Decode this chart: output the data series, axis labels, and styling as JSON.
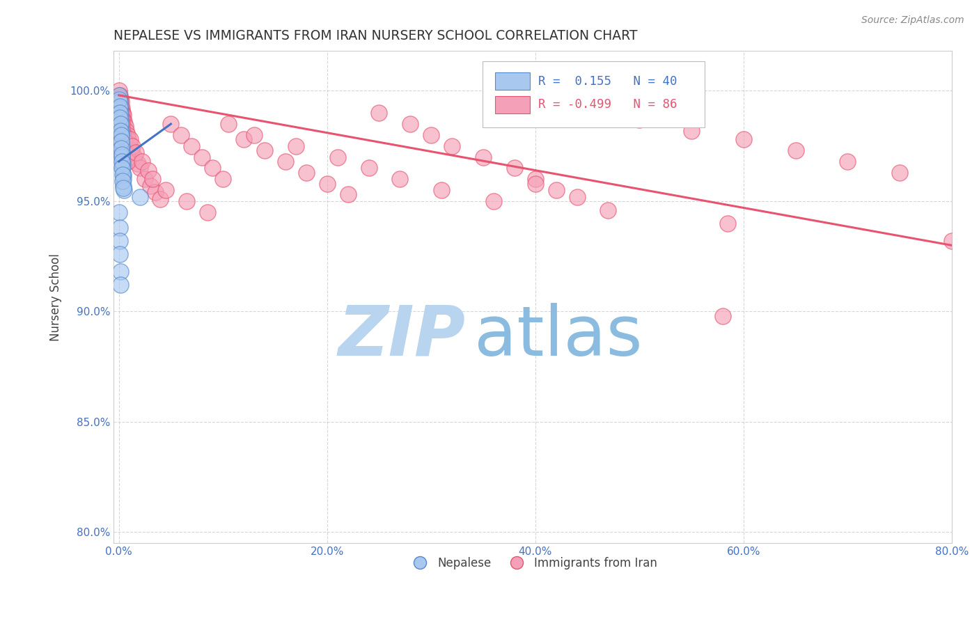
{
  "title": "NEPALESE VS IMMIGRANTS FROM IRAN NURSERY SCHOOL CORRELATION CHART",
  "source": "Source: ZipAtlas.com",
  "xlabel_ticks": [
    0.0,
    20.0,
    40.0,
    60.0,
    80.0
  ],
  "ylabel_ticks": [
    80.0,
    85.0,
    90.0,
    95.0,
    100.0
  ],
  "xmin": -0.5,
  "xmax": 80.0,
  "ymin": 79.5,
  "ymax": 101.8,
  "ylabel": "Nursery School",
  "legend_labels": [
    "Nepalese",
    "Immigrants from Iran"
  ],
  "blue_R": 0.155,
  "blue_N": 40,
  "pink_R": -0.499,
  "pink_N": 86,
  "blue_color": "#A8C8F0",
  "pink_color": "#F4A0B8",
  "blue_edge_color": "#5588CC",
  "pink_edge_color": "#E8536F",
  "blue_line_color": "#4472C4",
  "pink_line_color": "#E8536F",
  "watermark_zip_color": "#B8D4EE",
  "watermark_atlas_color": "#8BBCE0",
  "grid_color": "#CCCCCC",
  "title_color": "#333333",
  "axis_tick_color": "#4472C4",
  "blue_scatter_x": [
    0.05,
    0.08,
    0.1,
    0.12,
    0.15,
    0.18,
    0.2,
    0.22,
    0.25,
    0.28,
    0.3,
    0.32,
    0.35,
    0.38,
    0.4,
    0.42,
    0.45,
    0.48,
    0.05,
    0.08,
    0.1,
    0.12,
    0.15,
    0.18,
    0.2,
    0.22,
    0.25,
    0.28,
    0.3,
    0.32,
    0.35,
    0.38,
    0.4,
    0.05,
    0.07,
    0.09,
    0.11,
    0.14,
    0.16,
    2.0
  ],
  "blue_scatter_y": [
    99.8,
    99.5,
    99.2,
    99.0,
    98.7,
    98.5,
    98.2,
    98.0,
    97.7,
    97.5,
    97.2,
    97.0,
    96.7,
    96.5,
    96.2,
    96.0,
    95.7,
    95.5,
    99.6,
    99.3,
    99.0,
    98.8,
    98.5,
    98.2,
    98.0,
    97.7,
    97.4,
    97.1,
    96.8,
    96.5,
    96.2,
    95.9,
    95.6,
    94.5,
    93.8,
    93.2,
    92.6,
    91.8,
    91.2,
    95.2
  ],
  "pink_scatter_x": [
    0.05,
    0.1,
    0.15,
    0.2,
    0.25,
    0.3,
    0.35,
    0.4,
    0.45,
    0.5,
    0.6,
    0.7,
    0.8,
    0.9,
    1.0,
    1.2,
    1.5,
    1.8,
    2.0,
    2.5,
    3.0,
    3.5,
    4.0,
    5.0,
    6.0,
    7.0,
    8.0,
    9.0,
    10.0,
    12.0,
    14.0,
    16.0,
    18.0,
    20.0,
    22.0,
    25.0,
    28.0,
    30.0,
    32.0,
    35.0,
    38.0,
    40.0,
    42.0,
    45.0,
    48.0,
    50.0,
    55.0,
    60.0,
    65.0,
    70.0,
    75.0,
    80.0,
    0.08,
    0.12,
    0.18,
    0.22,
    0.28,
    0.32,
    0.38,
    0.42,
    0.55,
    0.65,
    0.75,
    0.85,
    1.1,
    1.3,
    1.6,
    2.2,
    2.8,
    3.2,
    4.5,
    6.5,
    8.5,
    10.5,
    13.0,
    17.0,
    21.0,
    24.0,
    27.0,
    31.0,
    36.0,
    40.0,
    44.0,
    47.0,
    58.0,
    58.5
  ],
  "pink_scatter_y": [
    100.0,
    99.8,
    99.6,
    99.5,
    99.3,
    99.2,
    99.0,
    98.9,
    98.7,
    98.6,
    98.4,
    98.2,
    98.0,
    97.8,
    97.6,
    97.3,
    97.0,
    96.7,
    96.5,
    96.0,
    95.7,
    95.4,
    95.1,
    98.5,
    98.0,
    97.5,
    97.0,
    96.5,
    96.0,
    97.8,
    97.3,
    96.8,
    96.3,
    95.8,
    95.3,
    99.0,
    98.5,
    98.0,
    97.5,
    97.0,
    96.5,
    96.0,
    95.5,
    99.3,
    99.0,
    98.7,
    98.2,
    97.8,
    97.3,
    96.8,
    96.3,
    93.2,
    99.7,
    99.5,
    99.2,
    99.0,
    98.7,
    98.5,
    98.2,
    98.0,
    97.7,
    97.4,
    97.1,
    96.8,
    97.8,
    97.5,
    97.2,
    96.8,
    96.4,
    96.0,
    95.5,
    95.0,
    94.5,
    98.5,
    98.0,
    97.5,
    97.0,
    96.5,
    96.0,
    95.5,
    95.0,
    95.8,
    95.2,
    94.6,
    89.8,
    94.0
  ],
  "blue_trendline_x": [
    0.0,
    5.0
  ],
  "blue_trendline_y": [
    96.8,
    98.5
  ],
  "pink_trendline_x": [
    0.0,
    80.0
  ],
  "pink_trendline_y": [
    99.8,
    93.0
  ]
}
